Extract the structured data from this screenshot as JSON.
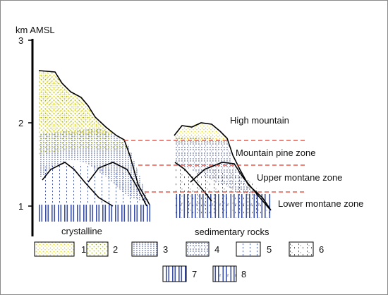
{
  "axis": {
    "title": "km AMSL",
    "ticks": [
      "3",
      "2",
      "1"
    ]
  },
  "zones": {
    "high": "High mountain",
    "pine": "Mountain pine zone",
    "upper": "Upper montane zone",
    "lower": "Lower montane zone"
  },
  "bedrock": {
    "left": "crystalline",
    "right": "sedimentary rocks"
  },
  "legend": {
    "items": [
      "1",
      "2",
      "3",
      "4",
      "5",
      "6",
      "7",
      "8"
    ]
  },
  "colors": {
    "zone_line": "#e03a2a",
    "yellow_dots": "#e2d92a",
    "blue_dots": "#3a4fa8",
    "axis": "#000000"
  }
}
